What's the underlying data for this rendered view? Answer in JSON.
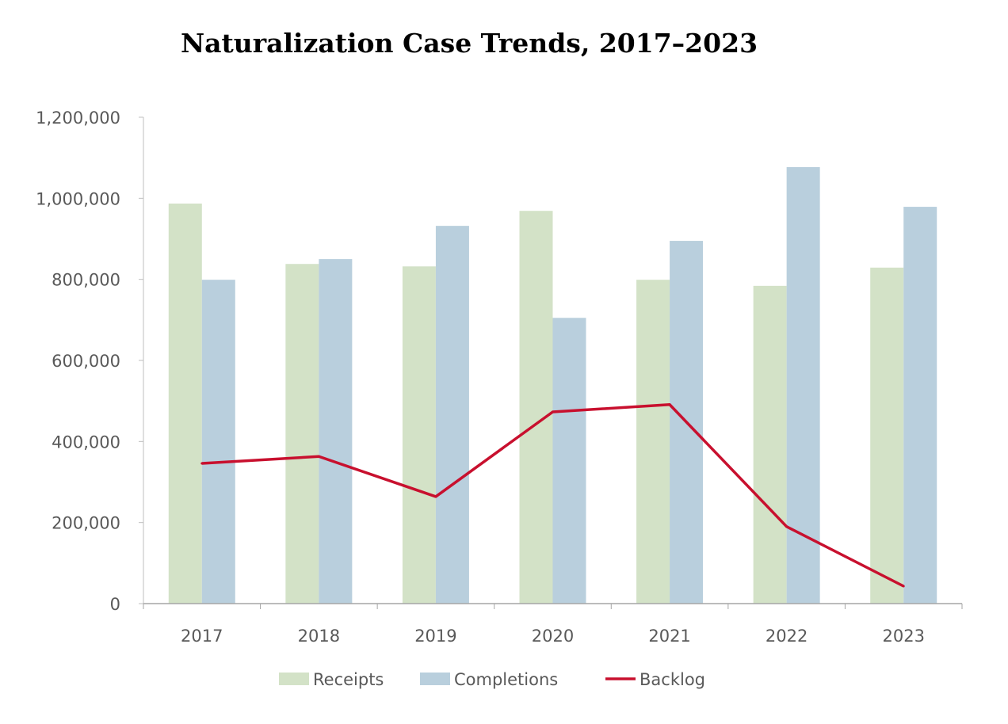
{
  "chart_data": {
    "type": "bar",
    "title": "Naturalization Case Trends, 2017–2023",
    "xlabel": "",
    "ylabel": "",
    "categories": [
      "2017",
      "2018",
      "2019",
      "2020",
      "2021",
      "2022",
      "2023"
    ],
    "ylim": [
      0,
      1200000
    ],
    "yticks": [
      0,
      200000,
      400000,
      600000,
      800000,
      1000000,
      1200000
    ],
    "ytick_labels": [
      "0",
      "200,000",
      "400,000",
      "600,000",
      "800,000",
      "1,000,000",
      "1,200,000"
    ],
    "grid": false,
    "legend_position": "bottom",
    "series": [
      {
        "name": "Receipts",
        "type": "bar",
        "color": "#d3e2c7",
        "values": [
          987000,
          838000,
          832000,
          969000,
          799000,
          784000,
          829000
        ]
      },
      {
        "name": "Completions",
        "type": "bar",
        "color": "#b9cfdd",
        "values": [
          799000,
          850000,
          932000,
          705000,
          895000,
          1077000,
          979000
        ]
      },
      {
        "name": "Backlog",
        "type": "line",
        "color": "#c8102e",
        "values": [
          346000,
          363000,
          264000,
          473000,
          491000,
          190000,
          43000
        ]
      }
    ]
  }
}
